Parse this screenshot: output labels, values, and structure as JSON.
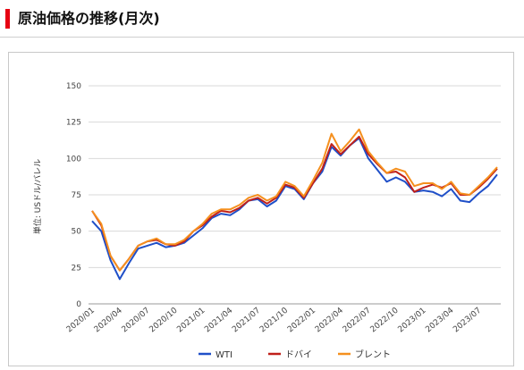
{
  "page": {
    "title": "原油価格の推移(月次)",
    "accent_color": "#e60012"
  },
  "chart_data": {
    "type": "line",
    "title": "",
    "xlabel": "",
    "ylabel": "単位: USドル/バレル",
    "ylim": [
      0,
      150
    ],
    "yticks": [
      "0",
      "25",
      "50",
      "75",
      "100",
      "125",
      "150"
    ],
    "grid": true,
    "legend_position": "bottom",
    "x": [
      "2020/01",
      "2020/02",
      "2020/03",
      "2020/04",
      "2020/05",
      "2020/06",
      "2020/07",
      "2020/08",
      "2020/09",
      "2020/10",
      "2020/11",
      "2020/12",
      "2021/01",
      "2021/02",
      "2021/03",
      "2021/04",
      "2021/05",
      "2021/06",
      "2021/07",
      "2021/08",
      "2021/09",
      "2021/10",
      "2021/11",
      "2021/12",
      "2022/01",
      "2022/02",
      "2022/03",
      "2022/04",
      "2022/05",
      "2022/06",
      "2022/07",
      "2022/08",
      "2022/09",
      "2022/10",
      "2022/11",
      "2022/12",
      "2023/01",
      "2023/02",
      "2023/03",
      "2023/04",
      "2023/05",
      "2023/06",
      "2023/07",
      "2023/08",
      "2023/09"
    ],
    "xtick_labels": [
      "2020/01",
      "2020/04",
      "2020/07",
      "2020/10",
      "2021/01",
      "2021/04",
      "2021/07",
      "2021/10",
      "2022/01",
      "2022/04",
      "2022/07",
      "2022/10",
      "2023/01",
      "2023/04",
      "2023/07"
    ],
    "series": [
      {
        "name": "WTI",
        "color": "#1f4fc8",
        "values": [
          57,
          50,
          30,
          17,
          28,
          38,
          40,
          42,
          39,
          40,
          42,
          47,
          52,
          59,
          62,
          61,
          65,
          71,
          72,
          67,
          71,
          81,
          79,
          72,
          83,
          91,
          108,
          102,
          109,
          114,
          100,
          92,
          84,
          87,
          84,
          77,
          78,
          77,
          74,
          79,
          71,
          70,
          76,
          81,
          89
        ]
      },
      {
        "name": "ドバイ",
        "color": "#c0201a",
        "values": [
          64,
          54,
          33,
          23,
          31,
          40,
          43,
          44,
          41,
          40,
          43,
          50,
          54,
          60,
          64,
          63,
          66,
          71,
          73,
          69,
          73,
          82,
          80,
          73,
          83,
          93,
          110,
          103,
          109,
          115,
          103,
          96,
          90,
          91,
          87,
          77,
          80,
          82,
          80,
          83,
          75,
          75,
          80,
          86,
          93
        ]
      },
      {
        "name": "ブレント",
        "color": "#f5901e",
        "values": [
          64,
          55,
          33,
          23,
          31,
          40,
          43,
          45,
          41,
          41,
          44,
          50,
          55,
          62,
          65,
          65,
          68,
          73,
          75,
          71,
          74,
          84,
          81,
          74,
          85,
          97,
          117,
          105,
          112,
          120,
          105,
          97,
          90,
          93,
          91,
          81,
          83,
          83,
          79,
          84,
          76,
          75,
          81,
          87,
          94
        ]
      }
    ]
  }
}
